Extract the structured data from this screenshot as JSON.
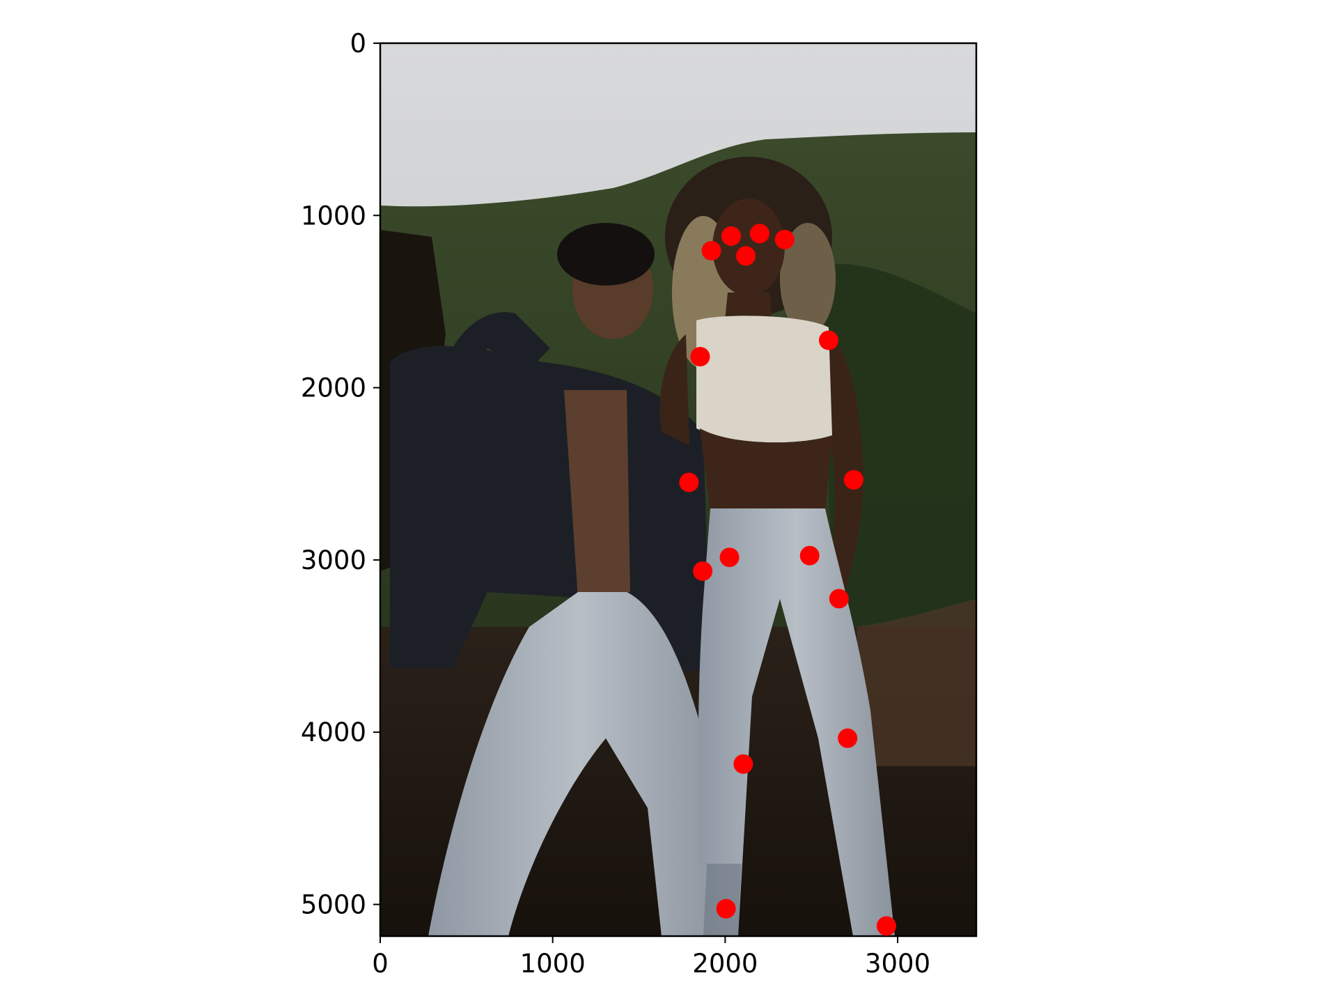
{
  "chart_data": {
    "type": "scatter",
    "title": "",
    "xlabel": "",
    "ylabel": "",
    "xlim": [
      0,
      3456
    ],
    "ylim": [
      5184,
      0
    ],
    "y_inverted": true,
    "x_ticks": [
      0,
      1000,
      2000,
      3000
    ],
    "y_ticks": [
      0,
      1000,
      2000,
      3000,
      4000,
      5000
    ],
    "x_tick_labels": [
      "0",
      "1000",
      "2000",
      "3000"
    ],
    "y_tick_labels": [
      "0",
      "1000",
      "2000",
      "3000",
      "4000",
      "5000"
    ],
    "grid": false,
    "legend": "none",
    "marker_color": "#ff0000",
    "background": "photo-two-people-hillside",
    "series": [
      {
        "x": [
          2035,
          2200,
          1920,
          2345,
          2120,
          2600,
          1855,
          2745,
          1790,
          2490,
          1870,
          2025,
          2660,
          2710,
          2105,
          2935,
          2005
        ],
        "y": [
          1120,
          1105,
          1205,
          1140,
          1235,
          1725,
          1820,
          2535,
          2550,
          2975,
          3065,
          2985,
          3225,
          4035,
          4185,
          5125,
          5025
        ]
      }
    ]
  }
}
